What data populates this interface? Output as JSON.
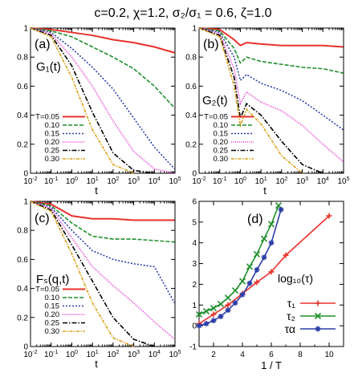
{
  "figure_title": "c=0.2, χ=1.2, σ₂/σ₁ = 0.6, ζ=1.0",
  "colors": {
    "T=0.05": "#e8322b",
    "0.10": "#1f8f2c",
    "0.15": "#2d3fa8",
    "0.20": "#e52ad1",
    "0.25": "#000000",
    "0.30": "#d9a016",
    "tau1": "#e8322b",
    "tau2": "#1f8f2c",
    "tau_alpha": "#2d3fa8"
  },
  "chart_data": [
    {
      "type": "line",
      "panel": "(a)",
      "ylabel": "G₁(t)",
      "xlabel": "t",
      "xscale": "log",
      "xlim": [
        0.01,
        100000
      ],
      "ylim": [
        0,
        1
      ],
      "x_ticks": [
        "10-2",
        "10-1",
        "100",
        "101",
        "102",
        "103",
        "104",
        "105"
      ],
      "y_ticks": [
        "0",
        "0.2",
        "0.4",
        "0.6",
        "0.8",
        "1"
      ],
      "legend": [
        "T=0.05",
        "0.10",
        "0.15",
        "0.20",
        "0.25",
        "0.30"
      ],
      "legend_position": "lower-left",
      "series": [
        {
          "name": "T=0.05",
          "x": [
            0.01,
            0.1,
            1,
            10,
            100,
            1000,
            10000,
            100000
          ],
          "y": [
            1.0,
            0.99,
            0.97,
            0.95,
            0.92,
            0.9,
            0.87,
            0.83
          ]
        },
        {
          "name": "0.10",
          "x": [
            0.01,
            0.1,
            1,
            10,
            100,
            1000,
            10000,
            100000
          ],
          "y": [
            1.0,
            0.98,
            0.94,
            0.87,
            0.8,
            0.72,
            0.6,
            0.45
          ]
        },
        {
          "name": "0.15",
          "x": [
            0.01,
            0.1,
            1,
            10,
            100,
            1000,
            10000,
            100000
          ],
          "y": [
            1.0,
            0.97,
            0.86,
            0.73,
            0.58,
            0.38,
            0.18,
            0.03
          ]
        },
        {
          "name": "0.20",
          "x": [
            0.01,
            0.1,
            1,
            10,
            100,
            1000,
            10000,
            100000
          ],
          "y": [
            1.0,
            0.96,
            0.8,
            0.6,
            0.36,
            0.15,
            0.03,
            0.0
          ]
        },
        {
          "name": "0.25",
          "x": [
            0.01,
            0.1,
            1,
            10,
            100,
            1000,
            10000
          ],
          "y": [
            1.0,
            0.95,
            0.74,
            0.42,
            0.14,
            0.02,
            0.0
          ]
        },
        {
          "name": "0.30",
          "x": [
            0.01,
            0.1,
            1,
            10,
            100,
            1000
          ],
          "y": [
            1.0,
            0.94,
            0.66,
            0.3,
            0.06,
            0.0
          ]
        }
      ]
    },
    {
      "type": "line",
      "panel": "(b)",
      "ylabel": "G₂(t)",
      "xlabel": "t",
      "xscale": "log",
      "xlim": [
        0.01,
        100000
      ],
      "ylim": [
        0,
        1
      ],
      "x_ticks": [
        "10-2",
        "10-1",
        "100",
        "101",
        "102",
        "103",
        "104",
        "105"
      ],
      "y_ticks": [
        "0",
        "0.2",
        "0.4",
        "0.6",
        "0.8",
        "1"
      ],
      "legend": [
        "T=0.05",
        "0.10",
        "0.15",
        "0.20",
        "0.25",
        "0.30"
      ],
      "legend_position": "lower-left",
      "series": [
        {
          "name": "T=0.05",
          "x": [
            0.01,
            0.1,
            0.5,
            1,
            2,
            10,
            100,
            1000,
            10000,
            100000
          ],
          "y": [
            1.0,
            0.99,
            0.92,
            0.88,
            0.9,
            0.89,
            0.88,
            0.88,
            0.88,
            0.87
          ]
        },
        {
          "name": "0.10",
          "x": [
            0.01,
            0.1,
            0.5,
            1,
            2,
            10,
            100,
            1000,
            10000,
            100000
          ],
          "y": [
            1.0,
            0.98,
            0.86,
            0.76,
            0.8,
            0.77,
            0.75,
            0.73,
            0.72,
            0.69
          ]
        },
        {
          "name": "0.15",
          "x": [
            0.01,
            0.1,
            0.5,
            1,
            2,
            10,
            100,
            1000,
            10000,
            100000
          ],
          "y": [
            1.0,
            0.97,
            0.8,
            0.64,
            0.68,
            0.62,
            0.57,
            0.5,
            0.4,
            0.3
          ]
        },
        {
          "name": "0.20",
          "x": [
            0.01,
            0.1,
            0.5,
            1,
            2,
            10,
            100,
            1000,
            10000,
            100000
          ],
          "y": [
            1.0,
            0.96,
            0.72,
            0.48,
            0.56,
            0.49,
            0.43,
            0.33,
            0.2,
            0.08
          ]
        },
        {
          "name": "0.25",
          "x": [
            0.01,
            0.1,
            0.5,
            1,
            2,
            10,
            100,
            1000,
            10000
          ],
          "y": [
            1.0,
            0.95,
            0.66,
            0.38,
            0.48,
            0.4,
            0.22,
            0.06,
            0.0
          ]
        },
        {
          "name": "0.30",
          "x": [
            0.01,
            0.1,
            0.5,
            1,
            2,
            10,
            100,
            1000
          ],
          "y": [
            1.0,
            0.94,
            0.6,
            0.33,
            0.44,
            0.34,
            0.12,
            0.0
          ]
        }
      ]
    },
    {
      "type": "line",
      "panel": "(c)",
      "ylabel": "Fₛ(q,t)",
      "xlabel": "t",
      "xscale": "log",
      "xlim": [
        0.01,
        100000
      ],
      "ylim": [
        0,
        1
      ],
      "x_ticks": [
        "10-2",
        "10-1",
        "100",
        "101",
        "102",
        "103",
        "104",
        "105"
      ],
      "y_ticks": [
        "0",
        "0.2",
        "0.4",
        "0.6",
        "0.8",
        "1"
      ],
      "legend": [
        "T=0.05",
        "0.10",
        "0.15",
        "0.20",
        "0.25",
        "0.30"
      ],
      "legend_position": "lower-left",
      "series": [
        {
          "name": "T=0.05",
          "x": [
            0.01,
            0.1,
            1,
            10,
            100,
            1000,
            10000,
            100000
          ],
          "y": [
            1.0,
            0.98,
            0.9,
            0.88,
            0.88,
            0.87,
            0.87,
            0.87
          ]
        },
        {
          "name": "0.10",
          "x": [
            0.01,
            0.1,
            1,
            10,
            100,
            1000,
            10000,
            100000
          ],
          "y": [
            1.0,
            0.97,
            0.85,
            0.76,
            0.74,
            0.74,
            0.73,
            0.72
          ]
        },
        {
          "name": "0.15",
          "x": [
            0.01,
            0.1,
            1,
            10,
            100,
            1000,
            10000,
            100000
          ],
          "y": [
            1.0,
            0.96,
            0.8,
            0.66,
            0.6,
            0.57,
            0.55,
            0.3
          ]
        },
        {
          "name": "0.20",
          "x": [
            0.01,
            0.1,
            1,
            10,
            100,
            1000,
            10000,
            100000
          ],
          "y": [
            1.0,
            0.95,
            0.75,
            0.55,
            0.42,
            0.3,
            0.17,
            0.05
          ]
        },
        {
          "name": "0.25",
          "x": [
            0.01,
            0.1,
            1,
            10,
            100,
            1000,
            10000
          ],
          "y": [
            1.0,
            0.94,
            0.7,
            0.45,
            0.2,
            0.05,
            0.0
          ]
        },
        {
          "name": "0.30",
          "x": [
            0.01,
            0.1,
            1,
            10,
            100,
            1000
          ],
          "y": [
            1.0,
            0.93,
            0.64,
            0.3,
            0.06,
            0.0
          ]
        }
      ]
    },
    {
      "type": "line",
      "panel": "(d)",
      "xlabel": "1 / T",
      "ylabel": "",
      "xlim": [
        1,
        11
      ],
      "ylim": [
        -1,
        6
      ],
      "x_ticks": [
        "2",
        "4",
        "6",
        "8",
        "10"
      ],
      "y_ticks": [
        "-1",
        "0",
        "1",
        "2",
        "3",
        "4",
        "5",
        "6"
      ],
      "annotation": "log₁₀(τ)",
      "legend": [
        "τ₁",
        "τ₂",
        "τα"
      ],
      "legend_position": "lower-right",
      "series": [
        {
          "name": "τ₁",
          "marker": "plus",
          "x": [
            1.0,
            2.0,
            3.0,
            4.0,
            5.0,
            6.0,
            7.0,
            10.0
          ],
          "y": [
            0.1,
            0.55,
            1.0,
            1.55,
            2.1,
            2.6,
            3.4,
            5.3
          ]
        },
        {
          "name": "τ₂",
          "marker": "x",
          "x": [
            1.0,
            1.5,
            2.0,
            2.5,
            3.0,
            3.5,
            4.0,
            4.5,
            5.0,
            5.5,
            6.0,
            6.5
          ],
          "y": [
            0.55,
            0.7,
            0.85,
            1.05,
            1.35,
            1.7,
            2.15,
            2.85,
            3.45,
            4.2,
            4.9,
            5.8
          ]
        },
        {
          "name": "τα",
          "marker": "star",
          "x": [
            1.0,
            1.5,
            2.0,
            2.5,
            3.0,
            3.5,
            4.0,
            4.5,
            5.0,
            5.5,
            6.0,
            6.67
          ],
          "y": [
            0.0,
            0.1,
            0.25,
            0.45,
            0.75,
            1.1,
            1.5,
            2.05,
            2.7,
            3.3,
            4.0,
            5.6
          ]
        }
      ]
    }
  ]
}
